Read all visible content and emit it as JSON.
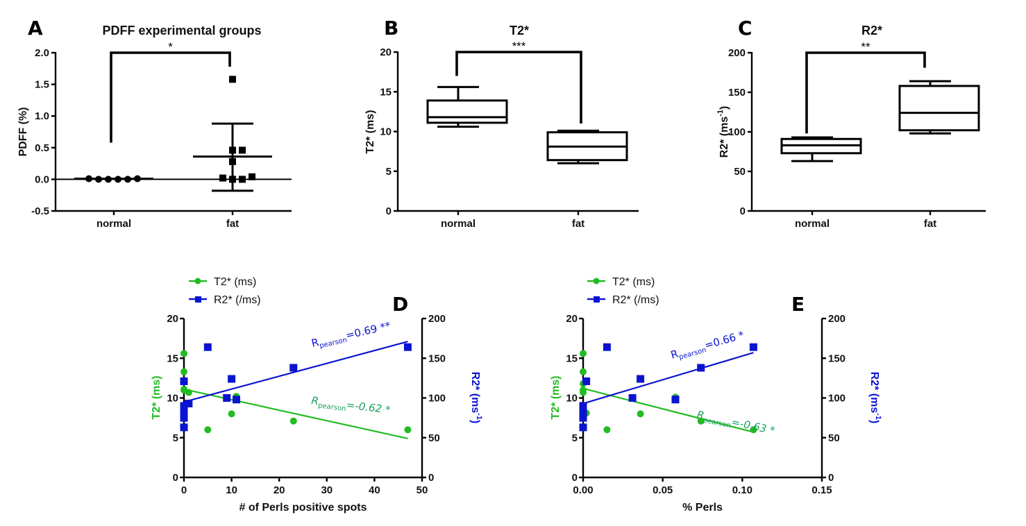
{
  "colors": {
    "t2": "#22bb22",
    "r2": "#0a14d0",
    "t2_annot": "#1aa060",
    "ink": "#000000"
  },
  "chart_data": [
    {
      "id": "A",
      "type": "scatter",
      "panel_label": "A",
      "title": "PDFF experimental groups",
      "xlabel": "",
      "ylabel": "PDFF (%)",
      "categories": [
        "normal",
        "fat"
      ],
      "ylim": [
        -0.5,
        2.0
      ],
      "yticks": [
        "-0.5",
        "0.0",
        "0.5",
        "1.0",
        "1.5",
        "2.0"
      ],
      "ytick_values": [
        -0.5,
        0.0,
        0.5,
        1.0,
        1.5,
        2.0
      ],
      "series": [
        {
          "name": "normal",
          "marker": "circle",
          "values": [
            0.01,
            0.0,
            0.0,
            0.0,
            0.0,
            0.01
          ],
          "mean": 0.01,
          "sd_low": 0.01,
          "sd_high": 0.01
        },
        {
          "name": "fat",
          "marker": "square",
          "values": [
            1.58,
            0.46,
            0.46,
            0.28,
            0.02,
            0.0,
            0.0,
            0.04
          ],
          "mean": 0.36,
          "sd_low": -0.18,
          "sd_high": 0.88
        }
      ],
      "significance": "*",
      "zero_line": true
    },
    {
      "id": "B",
      "type": "box",
      "panel_label": "B",
      "title": "T2*",
      "ylabel": "T2* (ms)",
      "categories": [
        "normal",
        "fat"
      ],
      "ylim": [
        0,
        20
      ],
      "yticks": [
        "0",
        "5",
        "10",
        "15",
        "20"
      ],
      "ytick_values": [
        0,
        5,
        10,
        15,
        20
      ],
      "boxes": [
        {
          "name": "normal",
          "min": 10.6,
          "q1": 11.1,
          "median": 11.8,
          "q3": 13.9,
          "max": 15.6
        },
        {
          "name": "fat",
          "min": 6.0,
          "q1": 6.4,
          "median": 8.1,
          "q3": 9.9,
          "max": 10.1
        }
      ],
      "significance": "***"
    },
    {
      "id": "C",
      "type": "box",
      "panel_label": "C",
      "title": "R2*",
      "ylabel": "R2* (ms-1)",
      "ylabel_main": "R2* (ms",
      "ylabel_sup": "-1",
      "ylabel_end": ")",
      "categories": [
        "normal",
        "fat"
      ],
      "ylim": [
        0,
        200
      ],
      "yticks": [
        "0",
        "50",
        "100",
        "150",
        "200"
      ],
      "ytick_values": [
        0,
        50,
        100,
        150,
        200
      ],
      "boxes": [
        {
          "name": "normal",
          "min": 63,
          "q1": 73,
          "median": 83,
          "q3": 91,
          "max": 93
        },
        {
          "name": "fat",
          "min": 98,
          "q1": 102,
          "median": 124,
          "q3": 158,
          "max": 164
        }
      ],
      "significance": "**"
    },
    {
      "id": "D",
      "type": "scatter",
      "panel_label": "D",
      "xlabel": "# of Perls positive spots",
      "ylabel_left": "T2* (ms)",
      "ylabel_right_main": "R2* (ms",
      "ylabel_right_sup": "-1",
      "ylabel_right_end": ")",
      "xlim": [
        0,
        50
      ],
      "xticks": [
        "0",
        "10",
        "20",
        "30",
        "40",
        "50"
      ],
      "xtick_values": [
        0,
        10,
        20,
        30,
        40,
        50
      ],
      "ylim_left": [
        0,
        20
      ],
      "yticks_left": [
        "0",
        "5",
        "10",
        "15",
        "20"
      ],
      "ytick_values_left": [
        0,
        5,
        10,
        15,
        20
      ],
      "ylim_right": [
        0,
        200
      ],
      "yticks_right": [
        "0",
        "50",
        "100",
        "150",
        "200"
      ],
      "ytick_values_right": [
        0,
        50,
        100,
        150,
        200
      ],
      "legend": [
        "T2* (ms)",
        "R2* (/ms)"
      ],
      "legend_position": "top-left",
      "series": [
        {
          "name": "T2* (ms)",
          "axis": "left",
          "marker": "circle",
          "x": [
            0,
            0,
            0,
            0,
            1,
            5,
            10,
            11,
            23,
            47
          ],
          "y": [
            15.6,
            13.3,
            11.1,
            11.0,
            10.7,
            6.0,
            8.0,
            10.2,
            7.1,
            6.0
          ],
          "fit": {
            "x": [
              0,
              47
            ],
            "y": [
              11.1,
              4.9
            ]
          },
          "annotation": {
            "prefix": "R",
            "sub": "pearson",
            "text": "=-0.62 *"
          }
        },
        {
          "name": "R2* (/ms)",
          "axis": "right",
          "marker": "square",
          "x": [
            0,
            0,
            0,
            0,
            0,
            0,
            1,
            5,
            9,
            10,
            11,
            23,
            47
          ],
          "y": [
            121,
            90,
            85,
            80,
            75,
            63,
            93,
            164,
            100,
            124,
            98,
            138,
            164
          ],
          "fit": {
            "x": [
              0,
              47
            ],
            "y": [
              95,
              171
            ]
          },
          "annotation": {
            "prefix": "R",
            "sub": "pearson",
            "text": "=0.69 **"
          }
        }
      ]
    },
    {
      "id": "E",
      "type": "scatter",
      "panel_label": "E",
      "xlabel": "% Perls",
      "ylabel_left": "T2* (ms)",
      "ylabel_right_main": "R2* (ms",
      "ylabel_right_sup": "-1",
      "ylabel_right_end": ")",
      "xlim": [
        0,
        0.15
      ],
      "xticks": [
        "0.00",
        "0.05",
        "0.10",
        "0.15"
      ],
      "xtick_values": [
        0,
        0.05,
        0.1,
        0.15
      ],
      "ylim_left": [
        0,
        20
      ],
      "yticks_left": [
        "0",
        "5",
        "10",
        "15",
        "20"
      ],
      "ytick_values_left": [
        0,
        5,
        10,
        15,
        20
      ],
      "ylim_right": [
        0,
        200
      ],
      "yticks_right": [
        "0",
        "50",
        "100",
        "150",
        "200"
      ],
      "ytick_values_right": [
        0,
        50,
        100,
        150,
        200
      ],
      "legend": [
        "T2* (ms)",
        "R2* (/ms)"
      ],
      "legend_position": "top-left",
      "series": [
        {
          "name": "T2* (ms)",
          "axis": "left",
          "marker": "circle",
          "x": [
            0,
            0,
            0,
            0,
            0,
            0.002,
            0.015,
            0.031,
            0.036,
            0.058,
            0.074,
            0.107
          ],
          "y": [
            15.6,
            13.3,
            11.8,
            11.0,
            10.7,
            8.1,
            6.0,
            10.0,
            8.0,
            10.1,
            7.1,
            6.0
          ],
          "fit": {
            "x": [
              0,
              0.107
            ],
            "y": [
              11.2,
              5.7
            ]
          },
          "annotation": {
            "prefix": "R",
            "sub": "pearson",
            "text": "=-0.63 *"
          }
        },
        {
          "name": "R2* (/ms)",
          "axis": "right",
          "marker": "square",
          "x": [
            0,
            0,
            0,
            0,
            0,
            0.002,
            0.015,
            0.031,
            0.036,
            0.058,
            0.074,
            0.107
          ],
          "y": [
            63,
            75,
            80,
            85,
            90,
            121,
            164,
            100,
            124,
            98,
            138,
            164
          ],
          "fit": {
            "x": [
              0,
              0.107
            ],
            "y": [
              93,
              157
            ]
          },
          "annotation": {
            "prefix": "R",
            "sub": "pearson",
            "text": "=0.66 *"
          }
        }
      ]
    }
  ]
}
